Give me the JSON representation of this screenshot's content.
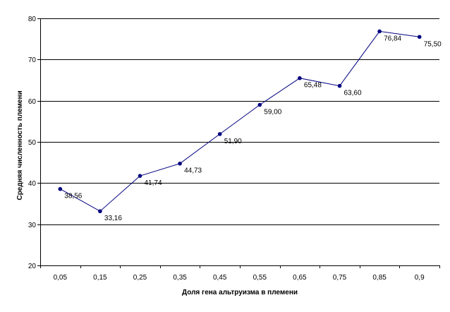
{
  "chart_data": {
    "type": "line",
    "title": "",
    "xlabel": "Доля гена альтруизма в племени",
    "ylabel": "Средняя численность племени",
    "categories": [
      "0,05",
      "0,15",
      "0,25",
      "0,35",
      "0,45",
      "0,55",
      "0,65",
      "0,75",
      "0,85",
      "0,9"
    ],
    "series": [
      {
        "values": [
          38.56,
          33.16,
          41.74,
          44.73,
          51.9,
          59.0,
          65.48,
          63.6,
          76.84,
          75.5
        ],
        "labels": [
          "38,56",
          "33,16",
          "41,74",
          "44,73",
          "51,90",
          "59,00",
          "65,48",
          "63,60",
          "76,84",
          "75,50"
        ],
        "color": "#000080"
      }
    ],
    "ylim": [
      20,
      80
    ],
    "yticks": [
      "20",
      "30",
      "40",
      "50",
      "60",
      "70",
      "80"
    ],
    "grid": true,
    "legend": "none"
  }
}
